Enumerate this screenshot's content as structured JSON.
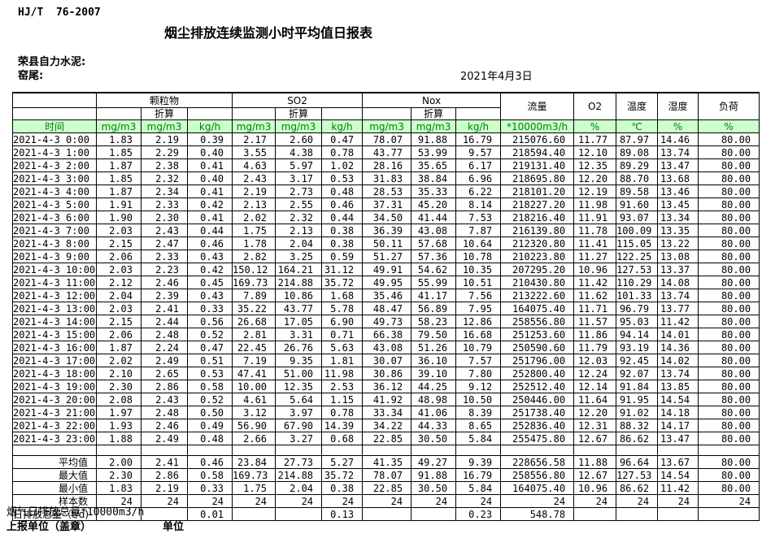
{
  "page": {
    "standard_code": "HJ/T  76-2007",
    "title": "烟尘排放连续监测小时平均值日报表",
    "company": "荣县自力水泥:",
    "station": "窑尾:",
    "date": "2021年4月3日"
  },
  "colors": {
    "units_row_bg": "#ccffcc",
    "units_row_text": "#008000"
  },
  "table": {
    "time_label": "时间",
    "converted_label": "折算",
    "groups": [
      {
        "label": "颗粒物"
      },
      {
        "label": "SO2"
      },
      {
        "label": "Nox"
      }
    ],
    "group_units": [
      "mg/m3",
      "mg/m3",
      "kg/h"
    ],
    "singles": [
      {
        "label": "流量",
        "unit": "*10000m3/h"
      },
      {
        "label": "O2",
        "unit": "%"
      },
      {
        "label": "温度",
        "unit": "℃"
      },
      {
        "label": "湿度",
        "unit": "%"
      },
      {
        "label": "负荷",
        "unit": "%"
      }
    ],
    "rows": [
      [
        "2021-4-3 0:00",
        "1.83",
        "2.19",
        "0.39",
        "2.17",
        "2.60",
        "0.47",
        "78.07",
        "91.88",
        "16.79",
        "215076.60",
        "11.77",
        "87.97",
        "14.46",
        "80.00"
      ],
      [
        "2021-4-3 1:00",
        "1.85",
        "2.29",
        "0.40",
        "3.55",
        "4.38",
        "0.78",
        "43.77",
        "53.99",
        "9.57",
        "218594.40",
        "12.10",
        "89.08",
        "13.74",
        "80.00"
      ],
      [
        "2021-4-3 2:00",
        "1.87",
        "2.38",
        "0.41",
        "4.63",
        "5.97",
        "1.02",
        "28.16",
        "35.65",
        "6.17",
        "219131.40",
        "12.35",
        "89.29",
        "13.47",
        "80.00"
      ],
      [
        "2021-4-3 3:00",
        "1.85",
        "2.32",
        "0.40",
        "2.43",
        "3.17",
        "0.53",
        "31.83",
        "38.84",
        "6.96",
        "218695.80",
        "12.20",
        "88.70",
        "13.68",
        "80.00"
      ],
      [
        "2021-4-3 4:00",
        "1.87",
        "2.34",
        "0.41",
        "2.19",
        "2.73",
        "0.48",
        "28.53",
        "35.33",
        "6.22",
        "218101.20",
        "12.19",
        "89.58",
        "13.46",
        "80.00"
      ],
      [
        "2021-4-3 5:00",
        "1.91",
        "2.33",
        "0.42",
        "2.13",
        "2.55",
        "0.46",
        "37.31",
        "45.20",
        "8.14",
        "218227.20",
        "11.98",
        "91.60",
        "13.45",
        "80.00"
      ],
      [
        "2021-4-3 6:00",
        "1.90",
        "2.30",
        "0.41",
        "2.02",
        "2.32",
        "0.44",
        "34.50",
        "41.44",
        "7.53",
        "218216.40",
        "11.91",
        "93.07",
        "13.34",
        "80.00"
      ],
      [
        "2021-4-3 7:00",
        "2.03",
        "2.43",
        "0.44",
        "1.75",
        "2.13",
        "0.38",
        "36.39",
        "43.08",
        "7.87",
        "216139.80",
        "11.78",
        "100.09",
        "13.35",
        "80.00"
      ],
      [
        "2021-4-3 8:00",
        "2.15",
        "2.47",
        "0.46",
        "1.78",
        "2.04",
        "0.38",
        "50.11",
        "57.68",
        "10.64",
        "212320.80",
        "11.41",
        "115.05",
        "13.22",
        "80.00"
      ],
      [
        "2021-4-3 9:00",
        "2.06",
        "2.33",
        "0.43",
        "2.82",
        "3.25",
        "0.59",
        "51.27",
        "57.36",
        "10.78",
        "210223.80",
        "11.27",
        "122.25",
        "13.08",
        "80.00"
      ],
      [
        "2021-4-3 10:00",
        "2.03",
        "2.23",
        "0.42",
        "150.12",
        "164.21",
        "31.12",
        "49.91",
        "54.62",
        "10.35",
        "207295.20",
        "10.96",
        "127.53",
        "13.37",
        "80.00"
      ],
      [
        "2021-4-3 11:00",
        "2.12",
        "2.46",
        "0.45",
        "169.73",
        "214.88",
        "35.72",
        "49.95",
        "55.99",
        "10.51",
        "210430.80",
        "11.42",
        "110.29",
        "14.08",
        "80.00"
      ],
      [
        "2021-4-3 12:00",
        "2.04",
        "2.39",
        "0.43",
        "7.89",
        "10.86",
        "1.68",
        "35.46",
        "41.17",
        "7.56",
        "213222.60",
        "11.62",
        "101.33",
        "13.74",
        "80.00"
      ],
      [
        "2021-4-3 13:00",
        "2.03",
        "2.41",
        "0.33",
        "35.22",
        "43.77",
        "5.78",
        "48.47",
        "56.89",
        "7.95",
        "164075.40",
        "11.71",
        "96.79",
        "13.77",
        "80.00"
      ],
      [
        "2021-4-3 14:00",
        "2.15",
        "2.44",
        "0.56",
        "26.68",
        "17.05",
        "6.90",
        "49.73",
        "58.23",
        "12.86",
        "258556.80",
        "11.57",
        "95.03",
        "11.42",
        "80.00"
      ],
      [
        "2021-4-3 15:00",
        "2.06",
        "2.48",
        "0.52",
        "2.81",
        "3.31",
        "0.71",
        "66.38",
        "79.50",
        "16.68",
        "251253.60",
        "11.86",
        "94.14",
        "14.01",
        "80.00"
      ],
      [
        "2021-4-3 16:00",
        "1.87",
        "2.24",
        "0.47",
        "22.45",
        "26.76",
        "5.63",
        "43.08",
        "51.26",
        "10.79",
        "250590.60",
        "11.79",
        "93.19",
        "14.36",
        "80.00"
      ],
      [
        "2021-4-3 17:00",
        "2.02",
        "2.49",
        "0.51",
        "7.19",
        "9.35",
        "1.81",
        "30.07",
        "36.10",
        "7.57",
        "251796.00",
        "12.03",
        "92.45",
        "14.02",
        "80.00"
      ],
      [
        "2021-4-3 18:00",
        "2.10",
        "2.65",
        "0.53",
        "47.41",
        "51.00",
        "11.98",
        "30.86",
        "39.10",
        "7.80",
        "252800.40",
        "12.24",
        "92.07",
        "13.74",
        "80.00"
      ],
      [
        "2021-4-3 19:00",
        "2.30",
        "2.86",
        "0.58",
        "10.00",
        "12.35",
        "2.53",
        "36.12",
        "44.25",
        "9.12",
        "252512.40",
        "12.14",
        "91.84",
        "13.85",
        "80.00"
      ],
      [
        "2021-4-3 20:00",
        "2.08",
        "2.43",
        "0.52",
        "4.61",
        "5.64",
        "1.15",
        "41.92",
        "48.98",
        "10.50",
        "250446.00",
        "11.64",
        "91.95",
        "14.54",
        "80.00"
      ],
      [
        "2021-4-3 21:00",
        "1.97",
        "2.48",
        "0.50",
        "3.12",
        "3.97",
        "0.78",
        "33.34",
        "41.06",
        "8.39",
        "251738.40",
        "12.20",
        "91.02",
        "14.18",
        "80.00"
      ],
      [
        "2021-4-3 22:00",
        "1.93",
        "2.46",
        "0.49",
        "56.90",
        "67.90",
        "14.39",
        "34.22",
        "44.33",
        "8.65",
        "252836.40",
        "12.31",
        "88.32",
        "14.17",
        "80.00"
      ],
      [
        "2021-4-3 23:00",
        "1.88",
        "2.49",
        "0.48",
        "2.66",
        "3.27",
        "0.68",
        "22.85",
        "30.50",
        "5.84",
        "255475.80",
        "12.67",
        "86.62",
        "13.47",
        "80.00"
      ]
    ],
    "summary": [
      {
        "label": "平均值",
        "values": [
          "2.00",
          "2.41",
          "0.46",
          "23.84",
          "27.73",
          "5.27",
          "41.35",
          "49.27",
          "9.39",
          "228656.58",
          "11.88",
          "96.64",
          "13.67",
          "80.00"
        ]
      },
      {
        "label": "最大值",
        "values": [
          "2.30",
          "2.86",
          "0.58",
          "169.73",
          "214.88",
          "35.72",
          "78.07",
          "91.88",
          "16.79",
          "258556.80",
          "12.67",
          "127.53",
          "14.54",
          "80.00"
        ]
      },
      {
        "label": "最小值",
        "values": [
          "1.83",
          "2.19",
          "0.33",
          "1.75",
          "2.04",
          "0.38",
          "22.85",
          "30.50",
          "5.84",
          "164075.40",
          "10.96",
          "86.62",
          "11.42",
          "80.00"
        ]
      },
      {
        "label": "样本数",
        "values": [
          "24",
          "24",
          "24",
          "24",
          "24",
          "24",
          "24",
          "24",
          "24",
          "24",
          "24",
          "24",
          "24",
          "24"
        ]
      },
      {
        "label": "日排放总量（t/d)",
        "values": [
          "",
          "",
          "0.01",
          "",
          "",
          "0.13",
          "",
          "",
          "0.23",
          "548.78",
          "",
          "",
          "",
          ""
        ]
      }
    ]
  },
  "footer": {
    "flue_total": "烟气日排放总量*10000m3/h",
    "report_unit": "上报单位（盖章）",
    "unit_label": "单位"
  }
}
